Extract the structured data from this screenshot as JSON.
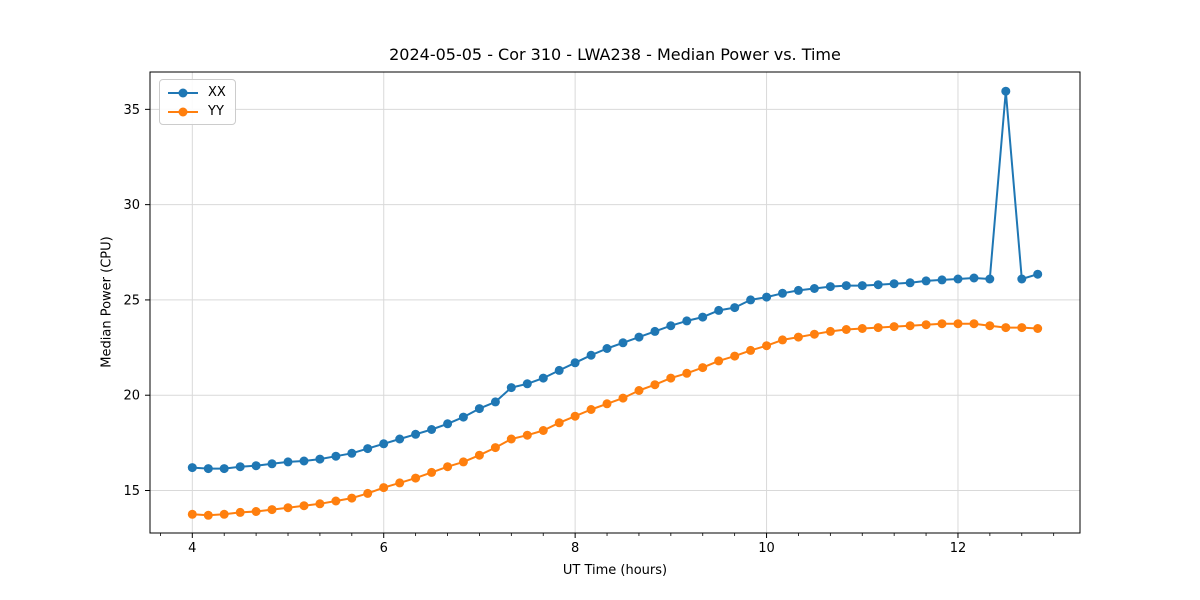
{
  "chart_data": {
    "type": "line",
    "title": "2024-05-05 - Cor 310 - LWA238 - Median Power vs. Time",
    "xlabel": "UT Time (hours)",
    "ylabel": "Median Power (CPU)",
    "grid": true,
    "legend_position": "upper left",
    "marker": "circle",
    "background_color": "#ffffff",
    "grid_color": "#d9d9d9",
    "spine_color": "#000000",
    "xlim": [
      3.558,
      13.275
    ],
    "ylim": [
      12.77,
      36.96
    ],
    "xticks": [
      4,
      6,
      8,
      10,
      12
    ],
    "yticks": [
      15,
      20,
      25,
      30,
      35
    ],
    "x_minor_tick_step": 0.33333,
    "x": [
      4.0,
      4.167,
      4.333,
      4.5,
      4.667,
      4.833,
      5.0,
      5.167,
      5.333,
      5.5,
      5.667,
      5.833,
      6.0,
      6.167,
      6.333,
      6.5,
      6.667,
      6.833,
      7.0,
      7.167,
      7.333,
      7.5,
      7.667,
      7.833,
      8.0,
      8.167,
      8.333,
      8.5,
      8.667,
      8.833,
      9.0,
      9.167,
      9.333,
      9.5,
      9.667,
      9.833,
      10.0,
      10.167,
      10.333,
      10.5,
      10.667,
      10.833,
      11.0,
      11.167,
      11.333,
      11.5,
      11.667,
      11.833,
      12.0,
      12.167,
      12.333,
      12.5,
      12.667,
      12.833
    ],
    "series": [
      {
        "name": "XX",
        "color": "#1f77b4",
        "values": [
          16.2,
          16.15,
          16.15,
          16.25,
          16.3,
          16.4,
          16.5,
          16.55,
          16.65,
          16.8,
          16.95,
          17.2,
          17.45,
          17.7,
          17.95,
          18.2,
          18.5,
          18.85,
          19.3,
          19.65,
          20.4,
          20.6,
          20.9,
          21.3,
          21.7,
          22.1,
          22.45,
          22.75,
          23.05,
          23.35,
          23.65,
          23.9,
          24.1,
          24.45,
          24.6,
          25.0,
          25.15,
          25.35,
          25.5,
          25.6,
          25.7,
          25.75,
          25.75,
          25.8,
          25.85,
          25.9,
          26.0,
          26.05,
          26.1,
          26.15,
          26.1,
          35.95,
          26.1,
          26.35
        ]
      },
      {
        "name": "YY",
        "color": "#ff7f0e",
        "values": [
          13.75,
          13.7,
          13.75,
          13.85,
          13.9,
          14.0,
          14.1,
          14.2,
          14.3,
          14.45,
          14.6,
          14.85,
          15.15,
          15.4,
          15.65,
          15.95,
          16.25,
          16.5,
          16.85,
          17.25,
          17.7,
          17.9,
          18.15,
          18.55,
          18.9,
          19.25,
          19.55,
          19.85,
          20.25,
          20.55,
          20.9,
          21.15,
          21.45,
          21.8,
          22.05,
          22.35,
          22.6,
          22.9,
          23.05,
          23.2,
          23.35,
          23.45,
          23.5,
          23.55,
          23.6,
          23.65,
          23.7,
          23.75,
          23.75,
          23.75,
          23.65,
          23.55,
          23.55,
          23.5
        ]
      }
    ]
  }
}
